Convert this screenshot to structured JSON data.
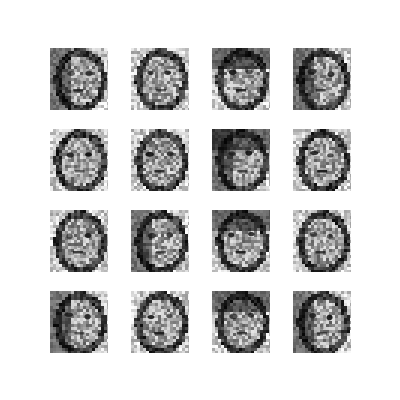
{
  "grid": {
    "rows": 4,
    "cols": 4,
    "palette": {
      "background": "#ffffff",
      "ink_dark": "#101010",
      "ink_mid": "#6a6a6a",
      "ink_light": "#d8d8d8"
    },
    "tiles": [
      {
        "variant": "hair-framed face, heavy left shadow"
      },
      {
        "variant": "oval face outline, eyes and mouth visible"
      },
      {
        "variant": "dark hair frame, mid-gray face"
      },
      {
        "variant": "dark rounded hair, light face"
      },
      {
        "variant": "noisy face, dark lower-right"
      },
      {
        "variant": "oval face outline, dark eyes"
      },
      {
        "variant": "dark hair left, gray face"
      },
      {
        "variant": "soft gray face, dark outline"
      },
      {
        "variant": "dark hair frame, pale face"
      },
      {
        "variant": "oval face outline, strong features"
      },
      {
        "variant": "noisy pattern, dark top"
      },
      {
        "variant": "dark hair frame, gray face"
      },
      {
        "variant": "dark stripes left, light center"
      },
      {
        "variant": "dark hair frame, noisy face"
      },
      {
        "variant": "dark rounded hair, gray face"
      },
      {
        "variant": "light face, dark sides"
      }
    ]
  }
}
